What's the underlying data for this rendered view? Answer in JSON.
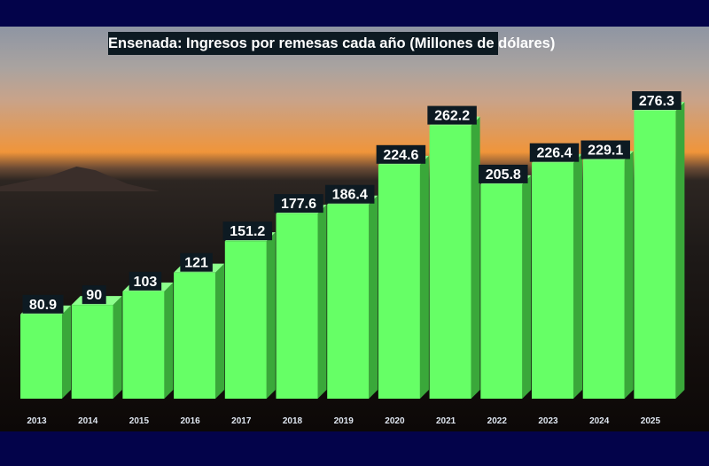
{
  "chart_data": {
    "type": "bar",
    "title": "Ensenada: Ingresos por remesas cada año (Millones de dólares)",
    "xlabel": "",
    "ylabel": "",
    "categories": [
      "2013",
      "2014",
      "2015",
      "2016",
      "2017",
      "2018",
      "2019",
      "2020",
      "2021",
      "2022",
      "2023",
      "2024",
      "2025"
    ],
    "values": [
      80.9,
      90,
      103,
      121,
      151.2,
      177.6,
      186.4,
      224.6,
      262.2,
      205.8,
      226.4,
      229.1,
      276.3
    ],
    "value_labels": [
      "80.9",
      "90",
      "103",
      "121",
      "151.2",
      "177.6",
      "186.4",
      "224.6",
      "262.2",
      "205.8",
      "226.4",
      "229.1",
      "276.3"
    ],
    "ylim": [
      0,
      280
    ],
    "grid": false,
    "colors": {
      "bar_front": "#66ff66",
      "bar_side": "#3aa83a",
      "bar_top": "#8cff8c",
      "label_bg": "#0d1a22",
      "frame": "#03034a"
    }
  }
}
